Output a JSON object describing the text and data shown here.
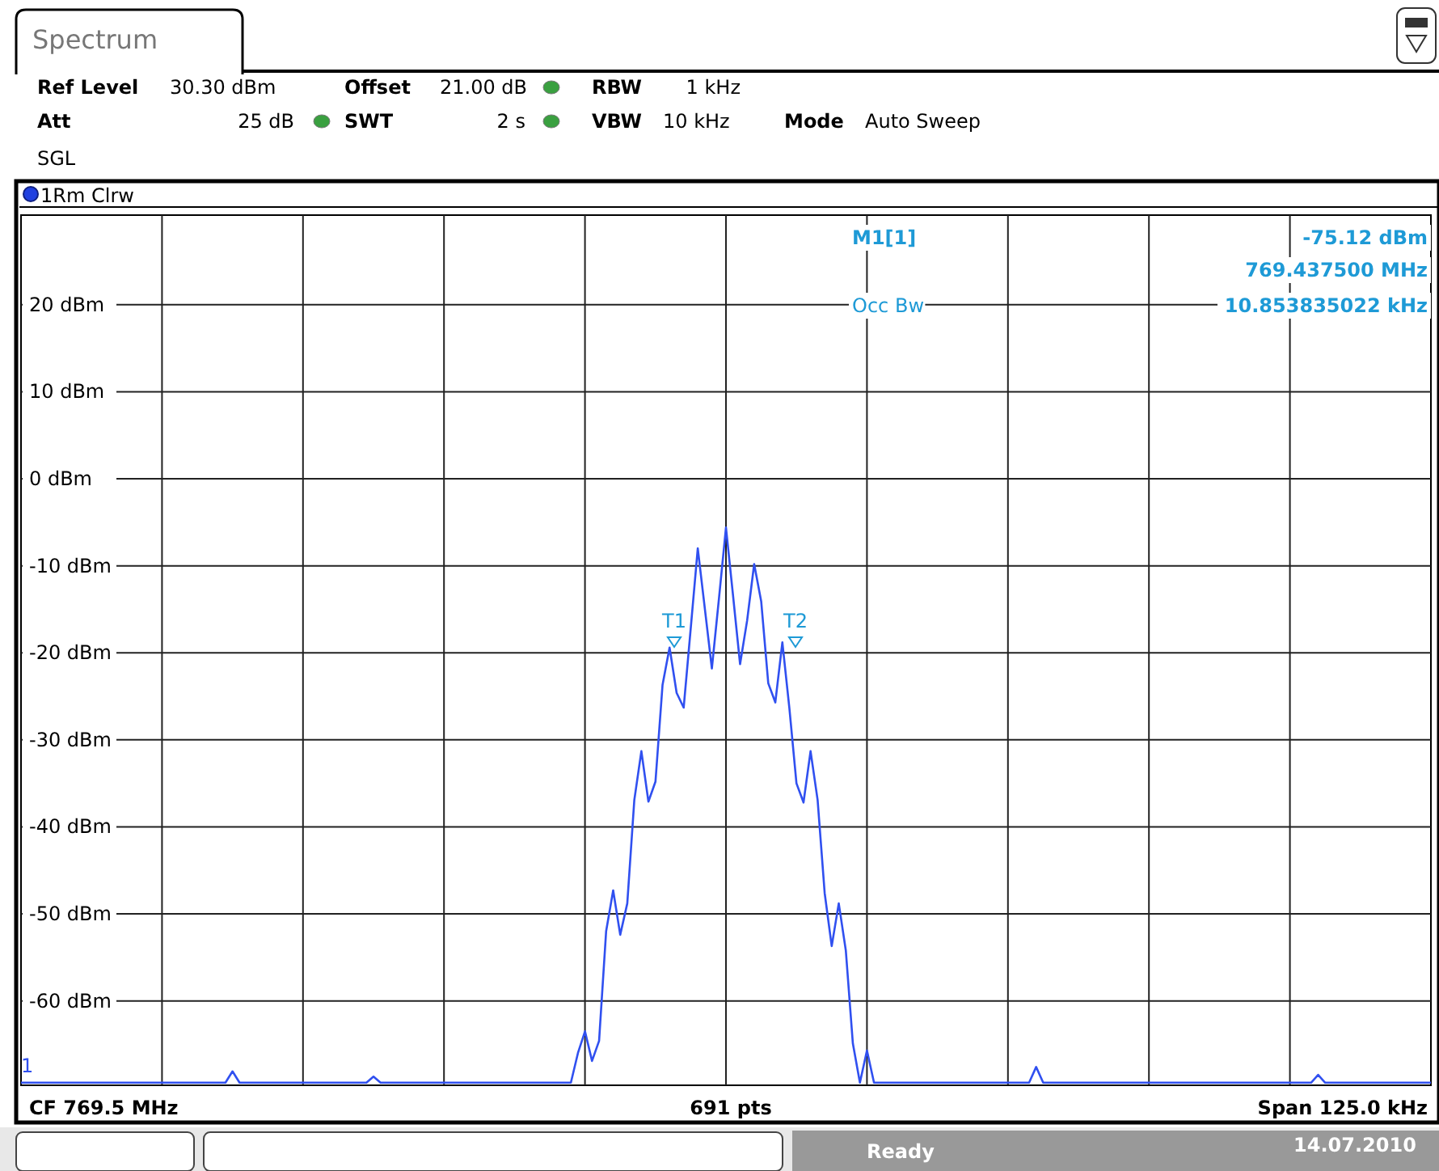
{
  "chart_data": {
    "type": "line",
    "title": "Spectrum",
    "categories": [
      null,
      null,
      null,
      null,
      null,
      null,
      null,
      null,
      null,
      null,
      null,
      null,
      null,
      null,
      null,
      null,
      null,
      null,
      null,
      null,
      null,
      null,
      null,
      null,
      null,
      null,
      null,
      null,
      null,
      null,
      null,
      null,
      null,
      null,
      null,
      null,
      null,
      null,
      null,
      null,
      null,
      null,
      null,
      null,
      null,
      null,
      null,
      null,
      null,
      null,
      null,
      null,
      null,
      null,
      null,
      null,
      null,
      null,
      null,
      null,
      null,
      null,
      null,
      null,
      null,
      null,
      null,
      null,
      null,
      null,
      null,
      null,
      null,
      null,
      null,
      null,
      null,
      null,
      null,
      null,
      null,
      null,
      null,
      null,
      null,
      null,
      null,
      null,
      null,
      null,
      null,
      null,
      null,
      null,
      null,
      null,
      null,
      null,
      null,
      null,
      null,
      null,
      null,
      null,
      null,
      null,
      null,
      null,
      null,
      null,
      null,
      null,
      null,
      null,
      null,
      null,
      null,
      null,
      null,
      null,
      null,
      null,
      null,
      null,
      null,
      null,
      null,
      null,
      null,
      null,
      null,
      null,
      null,
      null,
      null,
      null,
      null,
      null,
      null,
      null,
      null,
      null,
      null,
      null,
      null,
      null,
      null,
      null,
      null,
      null,
      null,
      null,
      null,
      null,
      null,
      null,
      null,
      null,
      null,
      null,
      null,
      null,
      null,
      null,
      null,
      null,
      null,
      null,
      null,
      null,
      null,
      null,
      null,
      null,
      null,
      null,
      null,
      null,
      null,
      null,
      null,
      null,
      null,
      null,
      null,
      null,
      null,
      null,
      null,
      null,
      null,
      null,
      null,
      null,
      null,
      null,
      null,
      null,
      null,
      null,
      null
    ],
    "ylim": [
      -69.7,
      30.3
    ],
    "yticks": [
      {
        "value": 20,
        "label": "20 dBm"
      },
      {
        "value": 10,
        "label": "10 dBm"
      },
      {
        "value": 0,
        "label": "0 dBm"
      },
      {
        "value": -10,
        "label": "-10 dBm"
      },
      {
        "value": -20,
        "label": "-20 dBm"
      },
      {
        "value": -30,
        "label": "-30 dBm"
      },
      {
        "value": -40,
        "label": "-40 dBm"
      },
      {
        "value": -50,
        "label": "-50 dBm"
      },
      {
        "value": -60,
        "label": "-60 dBm"
      }
    ],
    "tick_labels": "y",
    "grid": true,
    "legend": "top left",
    "line_style": "solid",
    "series": [
      {
        "name": "1Rm Clrw",
        "color": "#3050f0",
        "values": [
          -69.4,
          -69.4,
          -69.4,
          -69.4,
          -69.4,
          -69.4,
          -69.4,
          -69.4,
          -69.4,
          -69.4,
          -69.4,
          -69.4,
          -69.4,
          -69.4,
          -69.4,
          -69.4,
          -69.4,
          -69.4,
          -69.4,
          -69.4,
          -69.4,
          -69.4,
          -69.4,
          -69.4,
          -69.4,
          -69.4,
          -69.4,
          -69.4,
          -69.4,
          -69.4,
          -68.1,
          -69.4,
          -69.4,
          -69.4,
          -69.4,
          -69.4,
          -69.4,
          -69.4,
          -69.4,
          -69.4,
          -69.4,
          -69.4,
          -69.4,
          -69.4,
          -69.4,
          -69.4,
          -69.4,
          -69.4,
          -69.4,
          -69.4,
          -68.7,
          -69.4,
          -69.4,
          -69.4,
          -69.4,
          -69.4,
          -69.4,
          -69.4,
          -69.4,
          -69.4,
          -69.4,
          -69.4,
          -69.4,
          -69.4,
          -69.4,
          -69.4,
          -69.4,
          -69.4,
          -69.4,
          -69.4,
          -69.4,
          -69.4,
          -69.4,
          -69.4,
          -69.4,
          -69.4,
          -69.4,
          -69.4,
          -69.4,
          -66,
          -63.5,
          -66.9,
          -64.6,
          -52.0,
          -47.3,
          -52.4,
          -48.8,
          -36.9,
          -31.3,
          -37.1,
          -34.8,
          -23.7,
          -19.4,
          -24.6,
          -26.3,
          -17.2,
          -8.0,
          -14.9,
          -21.8,
          -13.8,
          -5.6,
          -13.4,
          -21.3,
          -16.3,
          -9.8,
          -14.1,
          -23.5,
          -25.7,
          -18.8,
          -26.4,
          -35.0,
          -37.2,
          -31.3,
          -36.9,
          -47.6,
          -53.7,
          -48.8,
          -54.2,
          -64.9,
          -69.4,
          -65.7,
          -69.4,
          -69.4,
          -69.4,
          -69.4,
          -69.4,
          -69.4,
          -69.4,
          -69.4,
          -69.4,
          -69.4,
          -69.4,
          -69.4,
          -69.4,
          -69.4,
          -69.4,
          -69.4,
          -69.4,
          -69.4,
          -69.4,
          -69.4,
          -69.4,
          -69.4,
          -69.4,
          -67.6,
          -69.4,
          -69.4,
          -69.4,
          -69.4,
          -69.4,
          -69.4,
          -69.4,
          -69.4,
          -69.4,
          -69.4,
          -69.4,
          -69.4,
          -69.4,
          -69.4,
          -69.4,
          -69.4,
          -69.4,
          -69.4,
          -69.4,
          -69.4,
          -69.4,
          -69.4,
          -69.4,
          -69.4,
          -69.4,
          -69.4,
          -69.4,
          -69.4,
          -69.4,
          -69.4,
          -69.4,
          -69.4,
          -69.4,
          -69.4,
          -69.4,
          -69.4,
          -69.4,
          -69.4,
          -69.4,
          -68.5,
          -69.4,
          -69.4,
          -69.4,
          -69.4,
          -69.4,
          -69.4,
          -69.4,
          -69.4,
          -69.4,
          -69.4,
          -69.4,
          -69.4,
          -69.4,
          -69.4,
          -69.4,
          -69.4
        ]
      }
    ],
    "annotations": [
      "T1",
      "T2",
      "Ref Level",
      "30.30 dBm",
      "Offset",
      "21.00 dB",
      "RBW",
      "1 kHz",
      "Att",
      "25 dB",
      "SWT",
      "2 s",
      "VBW",
      "10 kHz",
      "Mode",
      "Auto Sweep",
      "SGL",
      "M1[1]",
      "-75.12 dBm",
      "769.437500 MHz",
      "Occ Bw",
      "10.853835022 kHz",
      "CF 769.5 MHz",
      "691 pts",
      "Span 125.0 kHz",
      "1",
      "Ready",
      "14.07.2010"
    ]
  }
}
